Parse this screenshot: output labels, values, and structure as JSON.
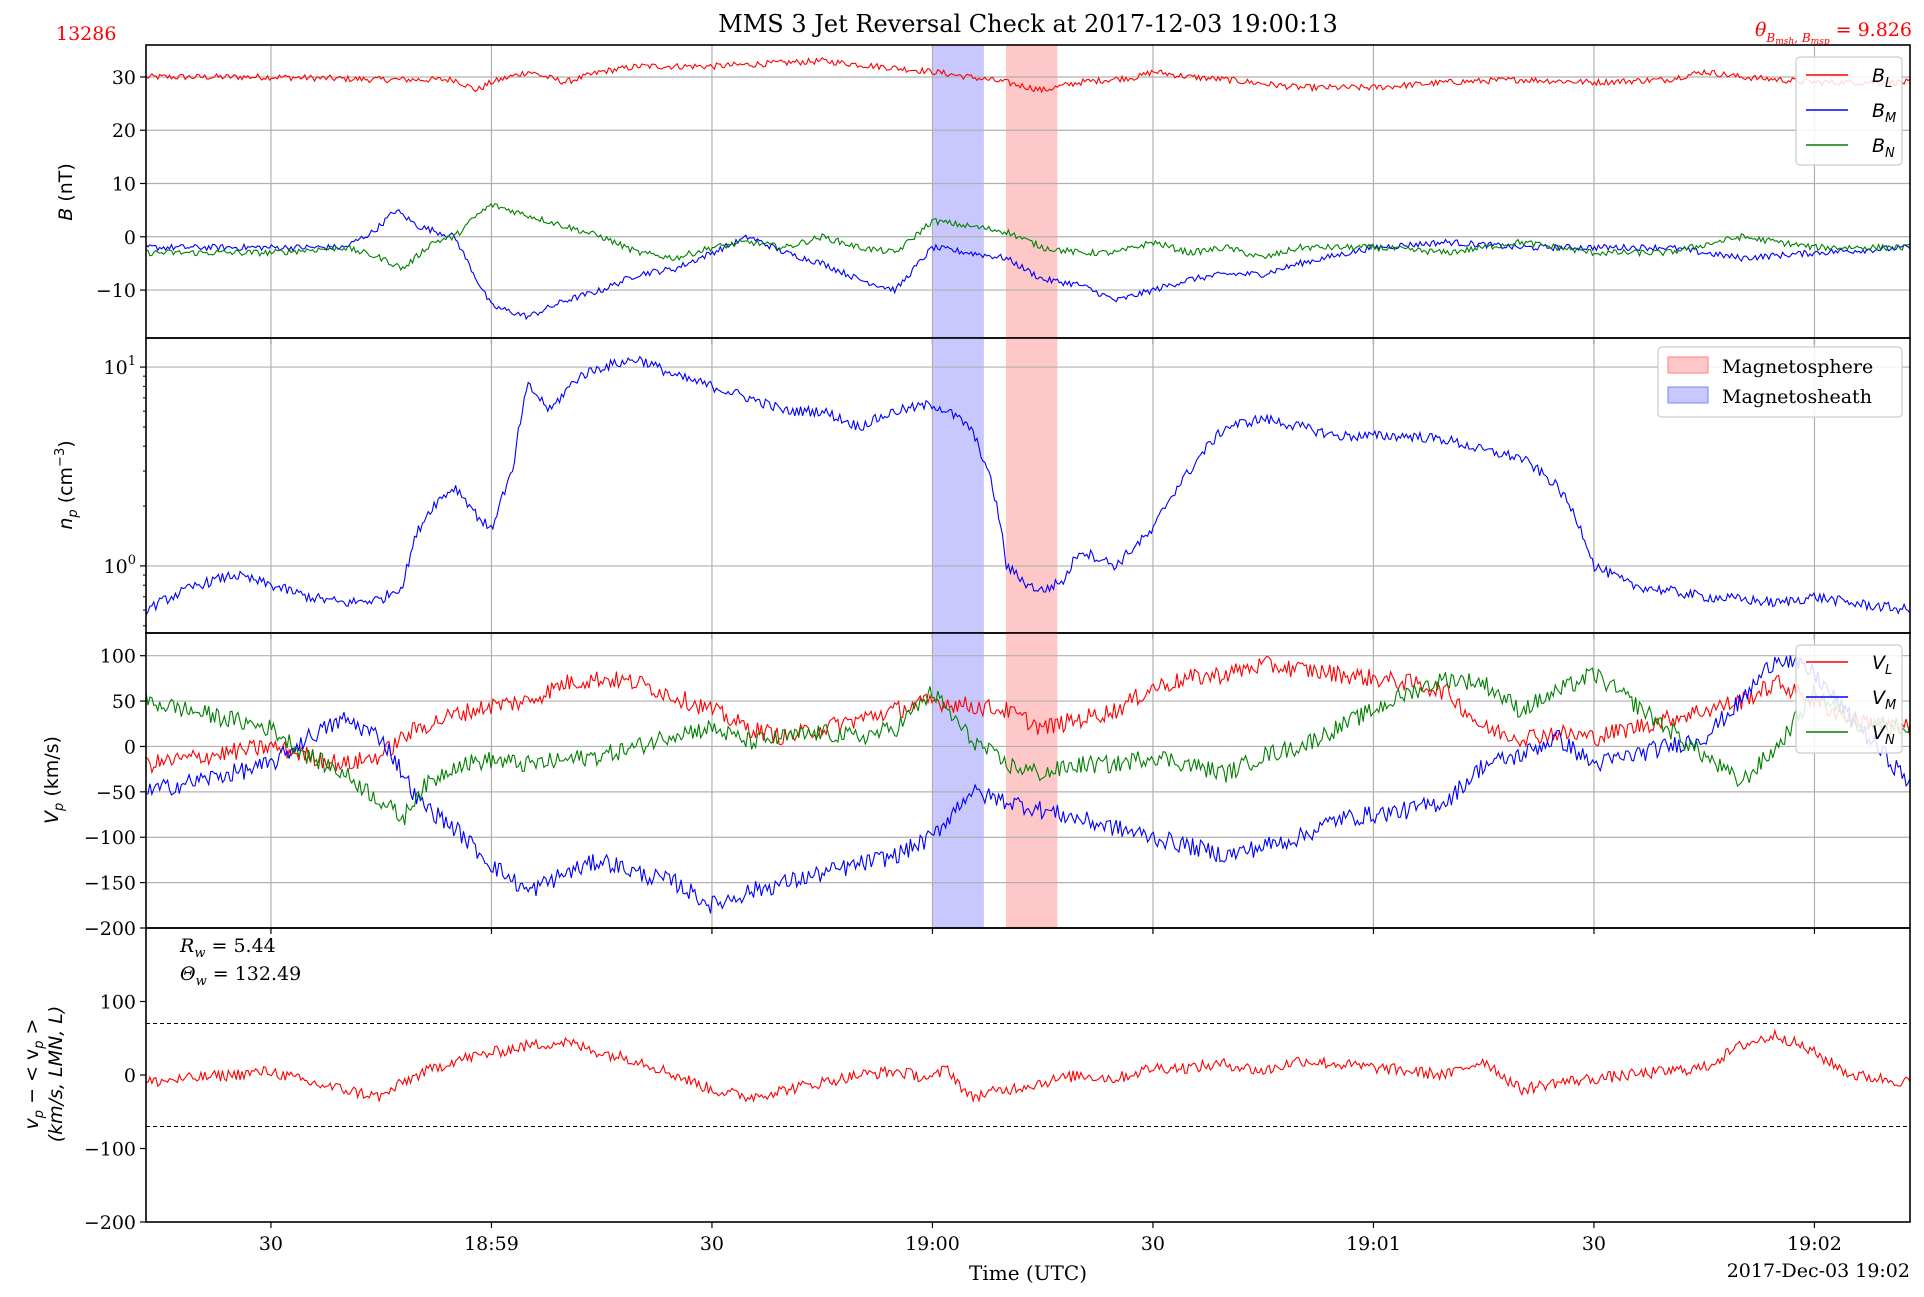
{
  "header": {
    "title": "MMS 3 Jet Reversal Check at 2017-12-03 19:00:13",
    "id_label": "13286",
    "angle_label": "θ_{B_msh, B_msp} = 9.826",
    "angle_value": "9.826"
  },
  "xaxis": {
    "label": "Time (UTC)",
    "date_label": "2017-Dec-03 19:02",
    "ticks": [
      "30",
      "18:59",
      "30",
      "19:00",
      "30",
      "19:01",
      "30",
      "19:02"
    ]
  },
  "colors": {
    "red": "#ff0000",
    "blue": "#0000ff",
    "green": "#008000",
    "grid": "#b0b0b0",
    "magnetosphere": "#ffc8c8",
    "magnetosheath": "#c8c8ff"
  },
  "chart_data": [
    {
      "type": "line",
      "panel": "B",
      "ylabel": "B (nT)",
      "ylim": [
        -19,
        36
      ],
      "yticks": [
        -10,
        0,
        10,
        20,
        30
      ],
      "grid": true,
      "legend_placement": "top-right",
      "x_range_s": [
        -17,
        223
      ],
      "series": [
        {
          "name": "B_L",
          "color": "#ff0000",
          "x": [
            -17,
            0,
            15,
            25,
            28,
            30,
            35,
            40,
            45,
            50,
            55,
            60,
            75,
            90,
            100,
            105,
            110,
            118,
            120,
            125,
            130,
            140,
            150,
            160,
            170,
            180,
            190,
            195,
            200,
            210,
            223
          ],
          "y": [
            30,
            30,
            29.5,
            29.5,
            27.5,
            29,
            31,
            29,
            31,
            32,
            32,
            32,
            33,
            31,
            29,
            27.5,
            29,
            30,
            31,
            30,
            29.5,
            28,
            28,
            29,
            29.5,
            29,
            29.5,
            31,
            30,
            29,
            29
          ]
        },
        {
          "name": "B_M",
          "color": "#0000ff",
          "x": [
            -17,
            0,
            10,
            14,
            17,
            20,
            25,
            28,
            30,
            35,
            40,
            45,
            50,
            55,
            60,
            65,
            70,
            75,
            80,
            85,
            90,
            100,
            105,
            110,
            115,
            120,
            125,
            130,
            135,
            140,
            150,
            160,
            170,
            180,
            190,
            200,
            210,
            223
          ],
          "y": [
            -2,
            -2,
            -2,
            1,
            5,
            2,
            0,
            -8,
            -13,
            -15,
            -12,
            -10,
            -7,
            -6,
            -3,
            0,
            -3,
            -5,
            -8,
            -10,
            -2,
            -4,
            -8,
            -9,
            -12,
            -10,
            -8,
            -7,
            -7,
            -5,
            -2,
            -1,
            -2,
            -2,
            -2,
            -4,
            -3,
            -2
          ]
        },
        {
          "name": "B_N",
          "color": "#008000",
          "x": [
            -17,
            0,
            10,
            15,
            18,
            22,
            25,
            28,
            30,
            35,
            40,
            45,
            50,
            55,
            60,
            65,
            70,
            75,
            80,
            85,
            90,
            100,
            105,
            110,
            115,
            120,
            125,
            130,
            135,
            140,
            150,
            160,
            170,
            180,
            190,
            200,
            210,
            223
          ],
          "y": [
            -3,
            -3,
            -2,
            -4,
            -6,
            -1,
            0,
            4,
            6,
            4,
            2,
            0,
            -3,
            -4,
            -2,
            -1,
            -2,
            0,
            -2,
            -3,
            3,
            1,
            -2,
            -3,
            -3,
            -1,
            -3,
            -2,
            -4,
            -2,
            -2,
            -3,
            -1,
            -3,
            -3,
            0,
            -2,
            -2
          ]
        }
      ]
    },
    {
      "type": "line",
      "panel": "n_p",
      "ylabel": "n_p (cm^-3)",
      "yscale": "log",
      "ylim": [
        0.46,
        14
      ],
      "yticks": [
        1,
        10
      ],
      "grid": true,
      "legend_placement": "top-right",
      "legend": [
        "Magnetosphere",
        "Magnetosheath"
      ],
      "series": [
        {
          "name": "n_p",
          "color": "#0000ff",
          "x": [
            -17,
            -10,
            -5,
            0,
            5,
            10,
            15,
            18,
            20,
            22,
            25,
            28,
            30,
            33,
            35,
            38,
            42,
            45,
            50,
            55,
            60,
            65,
            70,
            75,
            80,
            85,
            90,
            92,
            95,
            100,
            103,
            105,
            108,
            110,
            115,
            120,
            125,
            130,
            135,
            140,
            145,
            150,
            155,
            160,
            165,
            170,
            175,
            180,
            185,
            190,
            195,
            200,
            205,
            210,
            215,
            223
          ],
          "y": [
            0.6,
            0.8,
            0.9,
            0.8,
            0.7,
            0.65,
            0.68,
            0.8,
            1.5,
            2.0,
            2.5,
            1.8,
            1.5,
            3,
            8,
            6,
            9,
            10,
            11,
            9,
            8,
            7,
            6,
            6,
            5,
            6,
            6.5,
            6,
            5,
            1.0,
            0.8,
            0.75,
            0.85,
            1.2,
            1.0,
            1.5,
            3,
            5,
            5.5,
            5,
            4.5,
            4.5,
            4.5,
            4.3,
            3.8,
            3.5,
            2.5,
            1.0,
            0.8,
            0.75,
            0.7,
            0.68,
            0.65,
            0.7,
            0.65,
            0.6
          ]
        }
      ]
    },
    {
      "type": "line",
      "panel": "V_p",
      "ylabel": "V_p (km/s)",
      "ylim": [
        -200,
        125
      ],
      "yticks": [
        -200,
        -150,
        -100,
        -50,
        0,
        50,
        100
      ],
      "grid": true,
      "legend_placement": "top-right",
      "series": [
        {
          "name": "V_L",
          "color": "#ff0000",
          "x": [
            -17,
            0,
            5,
            10,
            15,
            18,
            20,
            25,
            30,
            35,
            40,
            45,
            50,
            55,
            60,
            65,
            70,
            75,
            80,
            85,
            90,
            95,
            100,
            105,
            110,
            115,
            120,
            125,
            130,
            135,
            140,
            145,
            150,
            155,
            160,
            165,
            170,
            175,
            180,
            185,
            190,
            195,
            200,
            205,
            210,
            215,
            223
          ],
          "y": [
            -20,
            0,
            -10,
            -20,
            -10,
            10,
            20,
            35,
            45,
            50,
            70,
            75,
            70,
            55,
            40,
            20,
            10,
            20,
            30,
            40,
            50,
            45,
            40,
            20,
            30,
            40,
            65,
            75,
            80,
            90,
            85,
            80,
            75,
            70,
            60,
            20,
            10,
            15,
            10,
            20,
            30,
            40,
            50,
            70,
            50,
            30,
            20
          ]
        },
        {
          "name": "V_M",
          "color": "#0000ff",
          "x": [
            -17,
            0,
            5,
            10,
            15,
            18,
            20,
            25,
            30,
            35,
            40,
            45,
            50,
            55,
            60,
            65,
            70,
            75,
            80,
            85,
            90,
            95,
            100,
            105,
            110,
            115,
            120,
            125,
            130,
            135,
            140,
            145,
            150,
            155,
            160,
            165,
            170,
            175,
            180,
            185,
            190,
            195,
            200,
            205,
            210,
            215,
            223
          ],
          "y": [
            -50,
            -20,
            10,
            30,
            10,
            -30,
            -60,
            -90,
            -130,
            -160,
            -140,
            -125,
            -140,
            -150,
            -175,
            -160,
            -150,
            -140,
            -130,
            -120,
            -100,
            -50,
            -60,
            -70,
            -80,
            -90,
            -100,
            -110,
            -120,
            -110,
            -100,
            -80,
            -75,
            -70,
            -60,
            -20,
            -10,
            10,
            -20,
            -10,
            0,
            10,
            50,
            100,
            80,
            30,
            -40
          ]
        },
        {
          "name": "V_N",
          "color": "#008000",
          "x": [
            -17,
            0,
            5,
            10,
            15,
            18,
            20,
            25,
            30,
            35,
            40,
            45,
            50,
            55,
            60,
            65,
            70,
            75,
            80,
            85,
            90,
            95,
            100,
            105,
            110,
            115,
            120,
            125,
            130,
            135,
            140,
            145,
            150,
            155,
            160,
            165,
            170,
            175,
            180,
            185,
            190,
            195,
            200,
            205,
            210,
            215,
            223
          ],
          "y": [
            50,
            20,
            -10,
            -30,
            -60,
            -80,
            -50,
            -20,
            -15,
            -20,
            -15,
            -10,
            0,
            15,
            20,
            5,
            10,
            15,
            10,
            20,
            60,
            10,
            -20,
            -30,
            -20,
            -20,
            -10,
            -20,
            -30,
            -10,
            0,
            20,
            40,
            60,
            75,
            70,
            40,
            60,
            80,
            50,
            20,
            -10,
            -40,
            0,
            60,
            30,
            20
          ]
        }
      ]
    },
    {
      "type": "line",
      "panel": "dV",
      "ylabel_line1": "v_p − < v_p >",
      "ylabel_line2": "(km/s, LMN, L)",
      "ylim": [
        -200,
        200
      ],
      "yticks": [
        -200,
        -100,
        0,
        100
      ],
      "grid": false,
      "annotations": {
        "Rw": "R_w = 5.44",
        "Theta": "Θ_w = 132.49"
      },
      "thresholds": [
        70,
        -70
      ],
      "series": [
        {
          "name": "v_p - <v_p>",
          "color": "#ff0000",
          "x": [
            -17,
            0,
            5,
            10,
            15,
            18,
            20,
            25,
            30,
            35,
            40,
            45,
            50,
            55,
            60,
            65,
            70,
            75,
            80,
            85,
            90,
            92,
            95,
            100,
            105,
            110,
            115,
            120,
            125,
            130,
            135,
            140,
            145,
            150,
            155,
            160,
            165,
            170,
            175,
            180,
            185,
            190,
            195,
            200,
            205,
            210,
            215,
            223
          ],
          "y": [
            -10,
            5,
            -10,
            -20,
            -30,
            -10,
            0,
            20,
            30,
            40,
            45,
            30,
            20,
            0,
            -20,
            -30,
            -20,
            -10,
            0,
            5,
            -5,
            10,
            -30,
            -20,
            -10,
            0,
            -5,
            10,
            10,
            15,
            5,
            20,
            15,
            10,
            5,
            0,
            20,
            -20,
            -10,
            -5,
            0,
            5,
            10,
            40,
            55,
            30,
            0,
            -10
          ]
        }
      ]
    }
  ],
  "shading": {
    "magnetosheath_s": [
      90,
      97
    ],
    "magnetosphere_s": [
      100,
      107
    ]
  }
}
